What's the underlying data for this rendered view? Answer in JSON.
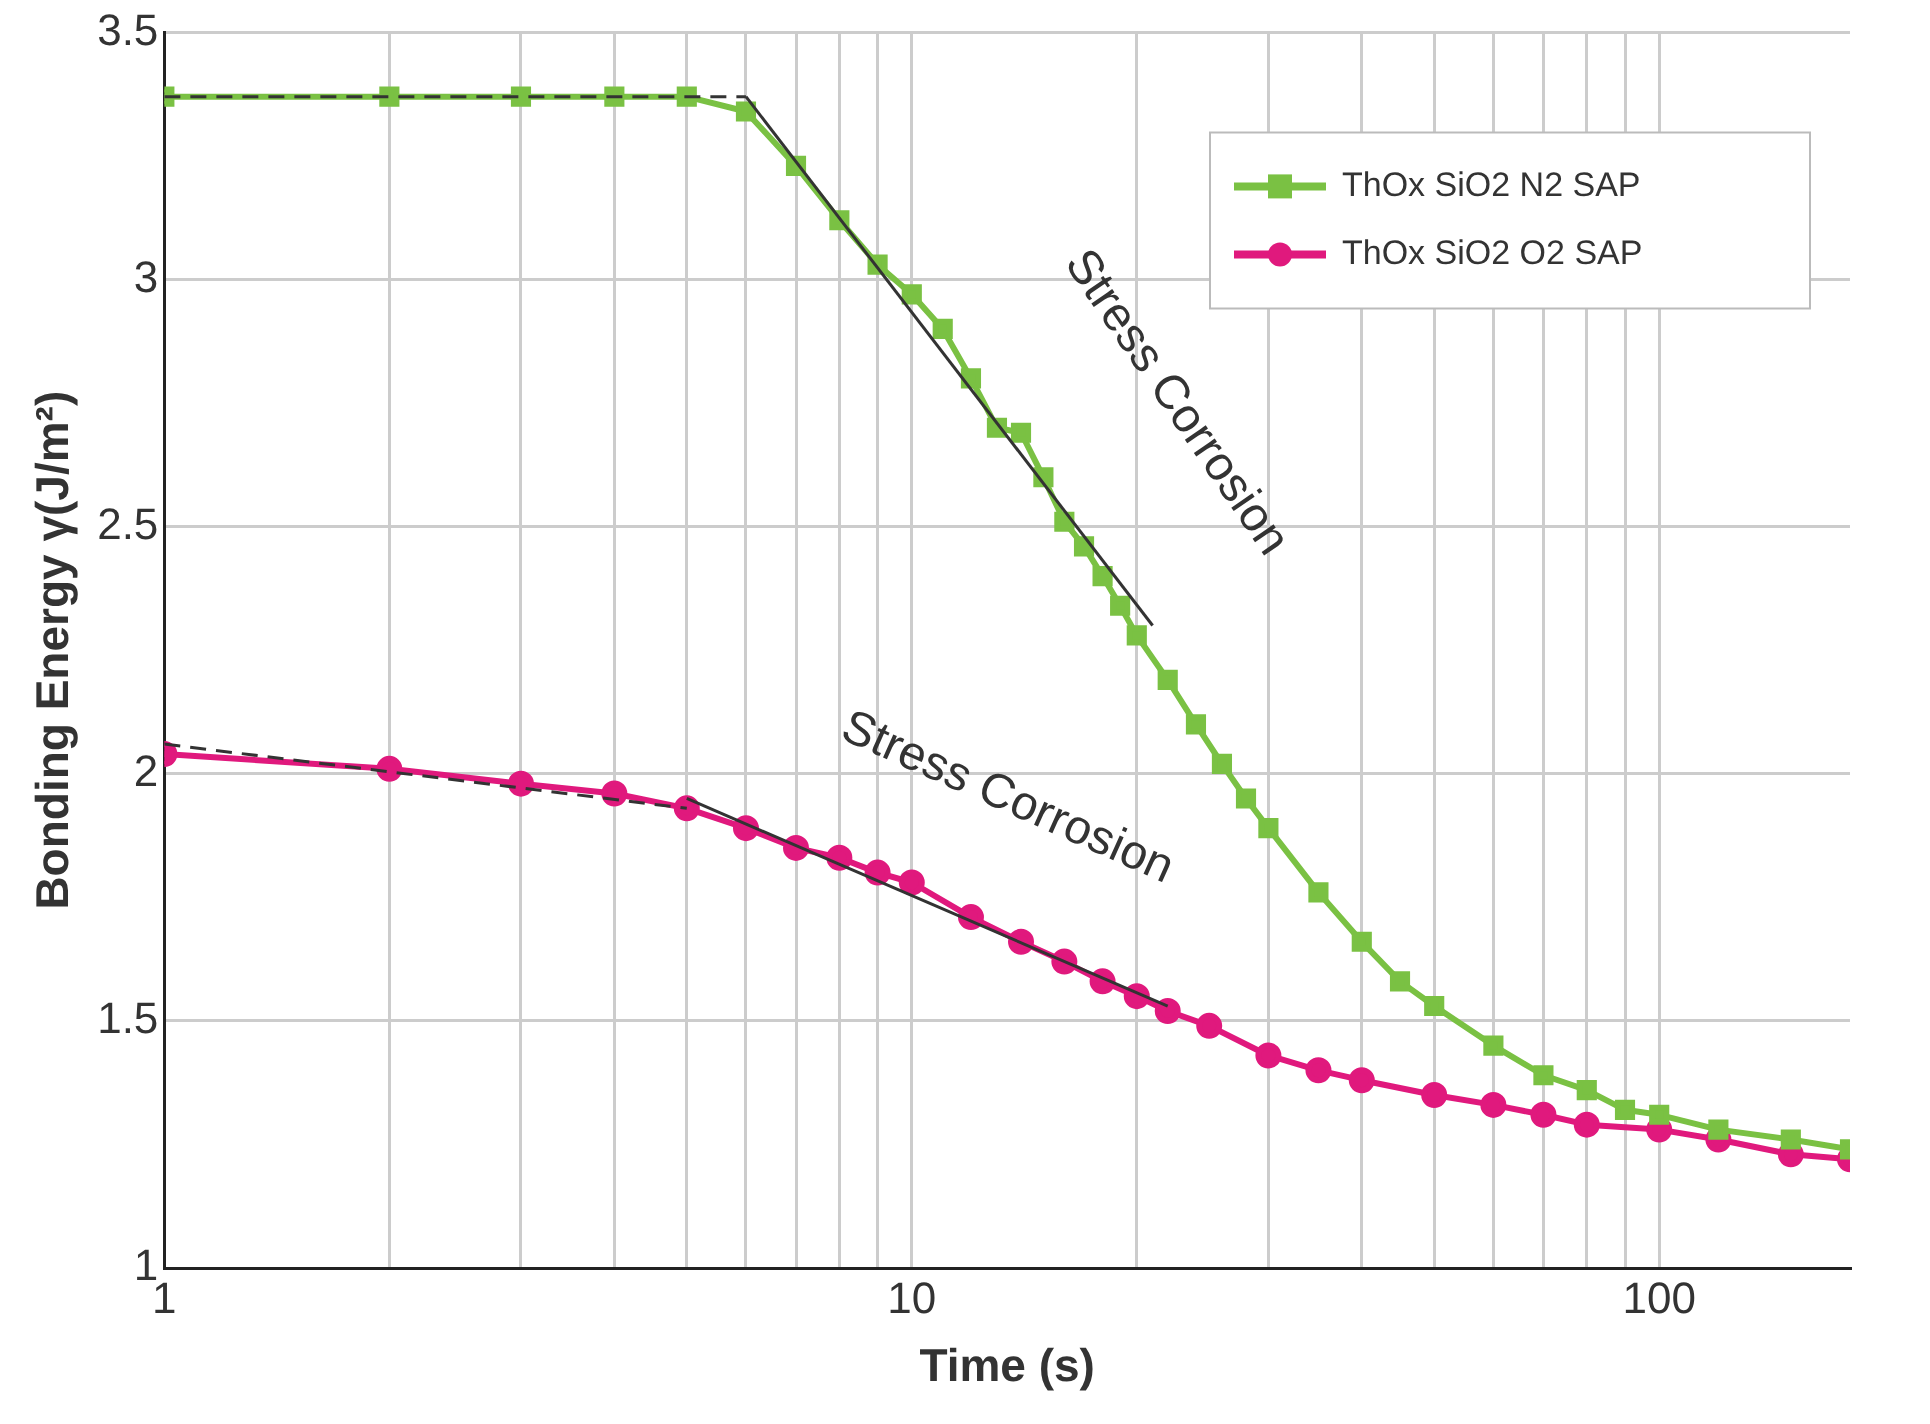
{
  "chart_data": {
    "type": "line",
    "xlabel": "Time (s)",
    "ylabel": "Bonding Energy γ(J/m²)",
    "log": "x",
    "grid": true,
    "legend": "top right",
    "xlim": [
      1,
      180
    ],
    "xticks": [
      1,
      {
        "value": 2,
        "label": null
      },
      {
        "value": 3,
        "label": null
      },
      {
        "value": 4,
        "label": null
      },
      {
        "value": 5,
        "label": null
      },
      {
        "value": 6,
        "label": null
      },
      {
        "value": 7,
        "label": null
      },
      {
        "value": 8,
        "label": null
      },
      {
        "value": 9,
        "label": null
      },
      10,
      {
        "value": 20,
        "label": null
      },
      {
        "value": 30,
        "label": null
      },
      {
        "value": 40,
        "label": null
      },
      {
        "value": 50,
        "label": null
      },
      {
        "value": 60,
        "label": null
      },
      {
        "value": 70,
        "label": null
      },
      {
        "value": 80,
        "label": null
      },
      {
        "value": 90,
        "label": null
      },
      100
    ],
    "ylim": [
      1,
      3.5
    ],
    "yticks": [
      1,
      1.5,
      2,
      2.5,
      3,
      3.5
    ],
    "series": [
      {
        "name": "ThOx SiO2 N2 SAP",
        "color": "#7ac143",
        "marker": "square",
        "x": [
          1,
          2,
          3,
          4,
          5,
          6,
          7,
          8,
          9,
          10,
          11,
          12,
          13,
          14,
          15,
          16,
          17,
          18,
          19,
          20,
          22,
          24,
          26,
          28,
          30,
          35,
          40,
          45,
          50,
          60,
          70,
          80,
          90,
          100,
          120,
          150,
          180
        ],
        "values": [
          3.37,
          3.37,
          3.37,
          3.37,
          3.37,
          3.34,
          3.23,
          3.12,
          3.03,
          2.97,
          2.9,
          2.8,
          2.7,
          2.69,
          2.6,
          2.51,
          2.46,
          2.4,
          2.34,
          2.28,
          2.19,
          2.1,
          2.02,
          1.95,
          1.89,
          1.76,
          1.66,
          1.58,
          1.53,
          1.45,
          1.39,
          1.36,
          1.32,
          1.31,
          1.28,
          1.26,
          1.24
        ]
      },
      {
        "name": "ThOx SiO2 O2 SAP",
        "color": "#e0197d",
        "marker": "circle",
        "x": [
          1,
          2,
          3,
          4,
          5,
          6,
          7,
          8,
          9,
          10,
          12,
          14,
          16,
          18,
          20,
          22,
          25,
          30,
          35,
          40,
          50,
          60,
          70,
          80,
          100,
          120,
          150,
          180
        ],
        "values": [
          2.04,
          2.01,
          1.98,
          1.96,
          1.93,
          1.89,
          1.85,
          1.83,
          1.8,
          1.78,
          1.71,
          1.66,
          1.62,
          1.58,
          1.55,
          1.52,
          1.49,
          1.43,
          1.4,
          1.38,
          1.35,
          1.33,
          1.31,
          1.29,
          1.28,
          1.26,
          1.23,
          1.22
        ]
      },
      {
        "color": "#333333",
        "marker": "none",
        "line_style": "dashed",
        "x": [
          1,
          6
        ],
        "values": [
          3.37,
          3.37
        ]
      },
      {
        "color": "#333333",
        "marker": "none",
        "line_style": "solid",
        "x": [
          6,
          21
        ],
        "values": [
          3.37,
          2.3
        ]
      },
      {
        "color": "#333333",
        "marker": "none",
        "line_style": "dashed",
        "x": [
          1,
          5
        ],
        "values": [
          2.06,
          1.93
        ]
      },
      {
        "color": "#333333",
        "marker": "none",
        "line_style": "solid",
        "x": [
          5,
          22
        ],
        "values": [
          1.95,
          1.53
        ]
      }
    ],
    "annotations": [
      "Stress Corrosion",
      "Stress Corrosion"
    ]
  }
}
